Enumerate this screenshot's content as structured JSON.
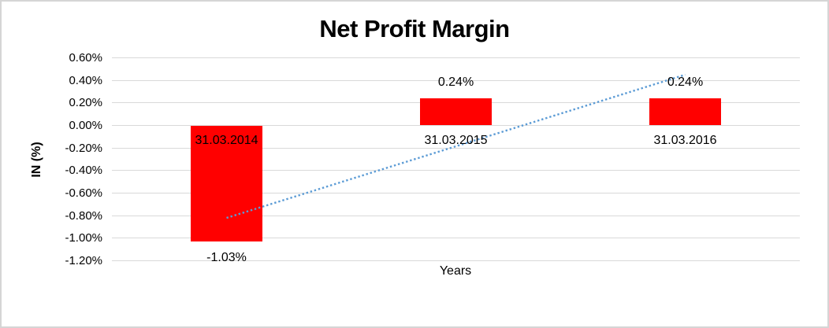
{
  "chart_data": {
    "type": "bar",
    "title": "Net Profit Margin",
    "xlabel": "Years",
    "ylabel": "IN (%)",
    "categories": [
      "31.03.2014",
      "31.03.2015",
      "31.03.2016"
    ],
    "values": [
      -1.03,
      0.24,
      0.24
    ],
    "data_labels": [
      "-1.03%",
      "0.24%",
      "0.24%"
    ],
    "y_ticks": [
      0.6,
      0.4,
      0.2,
      0.0,
      -0.2,
      -0.4,
      -0.6,
      -0.8,
      -1.0,
      -1.2
    ],
    "y_tick_labels": [
      "0.60%",
      "0.40%",
      "0.20%",
      "0.00%",
      "-0.20%",
      "-0.40%",
      "-0.60%",
      "-0.80%",
      "-1.00%",
      "-1.20%"
    ],
    "ylim": [
      -1.2,
      0.6
    ],
    "grid": true,
    "legend": "none",
    "bar_color": "#ff0000",
    "gridline_color": "#d9d9d9",
    "frame_border_color": "#d5d5d5",
    "trendline": {
      "style": "dotted",
      "color": "#5b9bd5",
      "start": {
        "category_index": 0,
        "value": -0.82
      },
      "end": {
        "category_index": 2,
        "value": 0.45
      }
    }
  }
}
